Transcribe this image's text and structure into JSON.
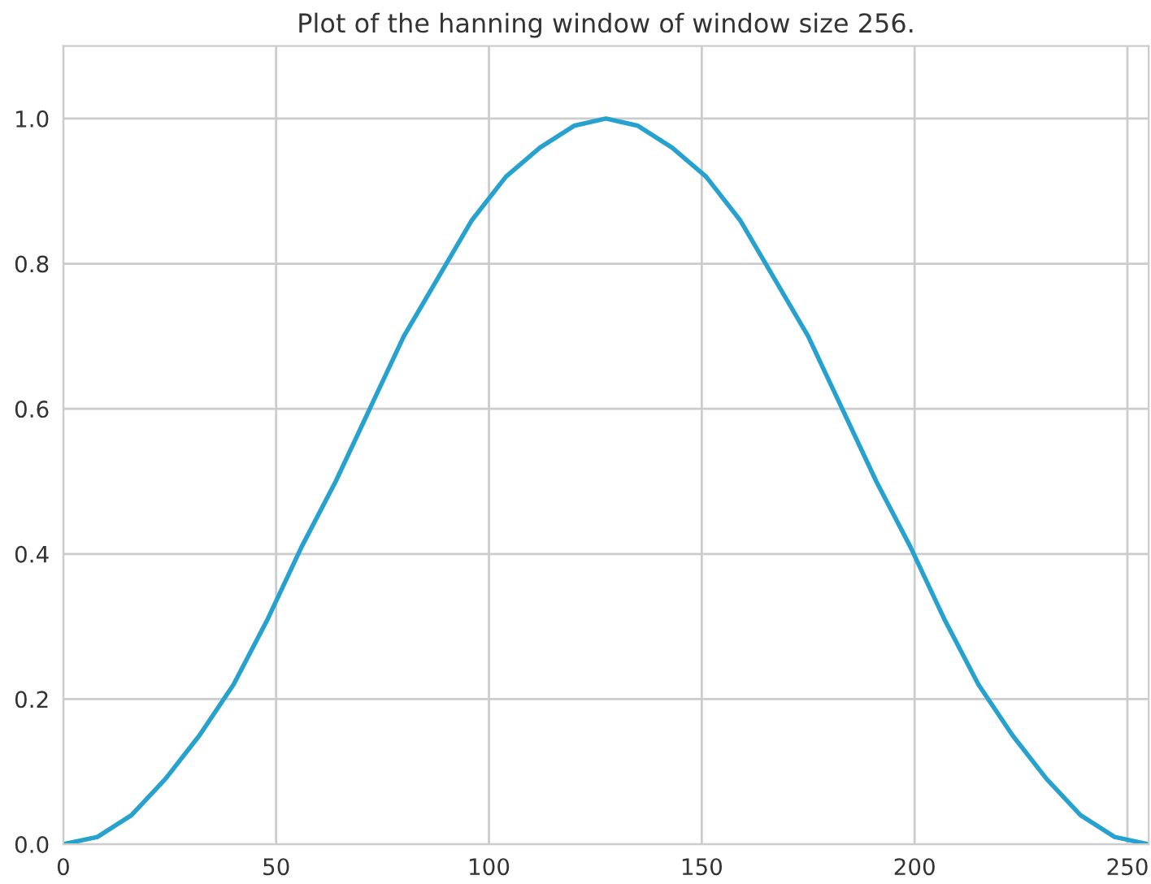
{
  "chart_data": {
    "type": "line",
    "title": "Plot of the hanning window of window size 256.",
    "x": [
      0,
      8,
      16,
      24,
      32,
      40,
      48,
      56,
      64,
      72,
      80,
      88,
      96,
      104,
      112,
      120,
      127.5,
      135,
      143,
      151,
      159,
      167,
      175,
      183,
      191,
      199,
      207,
      215,
      223,
      231,
      239,
      247,
      255
    ],
    "series": [
      {
        "color": "#27a2cf",
        "values": [
          0,
          0.01,
          0.04,
          0.09,
          0.15,
          0.22,
          0.31,
          0.41,
          0.5,
          0.6,
          0.7,
          0.78,
          0.86,
          0.92,
          0.96,
          0.99,
          1.0,
          0.99,
          0.96,
          0.92,
          0.86,
          0.78,
          0.7,
          0.6,
          0.5,
          0.41,
          0.31,
          0.22,
          0.15,
          0.09,
          0.04,
          0.01,
          0
        ]
      }
    ],
    "xlim": [
      0,
      255
    ],
    "ylim": [
      0,
      1.1
    ],
    "xticks": [
      0,
      50,
      100,
      150,
      200,
      250
    ],
    "yticks": [
      {
        "value": 0,
        "label": "0.0"
      },
      0.2,
      0.4,
      0.6,
      0.8,
      {
        "value": 1,
        "label": "1.0"
      }
    ],
    "grid": true
  }
}
